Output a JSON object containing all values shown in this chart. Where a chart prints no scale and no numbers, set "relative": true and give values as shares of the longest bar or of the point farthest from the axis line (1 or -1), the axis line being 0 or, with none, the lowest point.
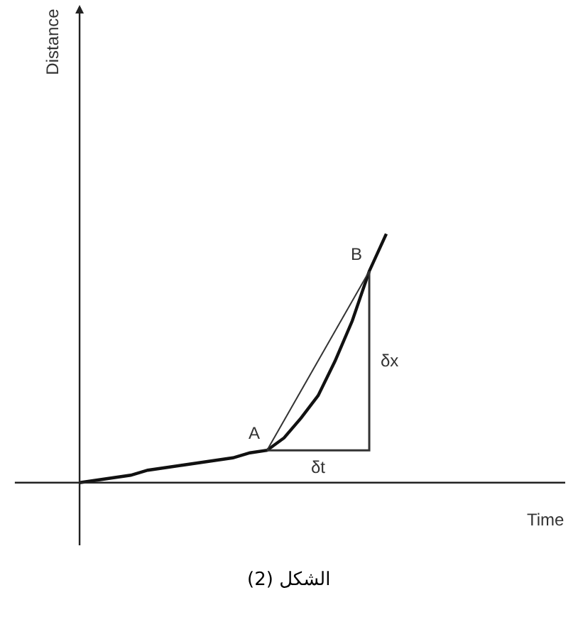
{
  "chart_data": {
    "type": "line",
    "relative": true,
    "xlabel": "Time",
    "tick_labels": false,
    "categories": [
      null,
      null,
      null,
      null,
      null,
      null,
      null,
      null,
      null,
      null,
      null,
      null,
      null,
      null,
      null,
      null,
      null,
      null,
      null,
      null,
      null,
      null,
      null,
      null,
      null,
      null,
      null,
      null,
      null
    ],
    "series": [
      {
        "color": "#111111",
        "values": [
          0,
          0.01,
          0.02,
          0.03,
          0.05,
          0.06,
          0.07,
          0.08,
          0.09,
          0.1,
          0.12,
          0.13,
          0.18,
          0.26,
          0.35,
          0.49,
          0.65,
          0.85,
          1,
          null,
          null,
          null,
          null,
          null,
          null,
          null,
          null,
          null,
          null
        ]
      },
      {
        "type": "line",
        "color": "#333333",
        "values": [
          null,
          null,
          null,
          null,
          null,
          null,
          null,
          null,
          null,
          null,
          null,
          0.13,
          null,
          null,
          null,
          null,
          null,
          0.85,
          null,
          null,
          null,
          null,
          null,
          null,
          null,
          null,
          null,
          null,
          null
        ]
      },
      {
        "type": "step",
        "color": "#333333",
        "values": [
          null,
          null,
          null,
          null,
          null,
          null,
          null,
          null,
          null,
          null,
          null,
          0.13,
          null,
          null,
          null,
          null,
          null,
          0.85,
          null,
          null,
          null,
          null,
          null,
          null,
          null,
          null,
          null,
          null,
          null
        ]
      }
    ],
    "annotations": [
      "A",
      "B",
      "δt",
      "δx",
      "الشكل (2)",
      "Distance"
    ]
  }
}
